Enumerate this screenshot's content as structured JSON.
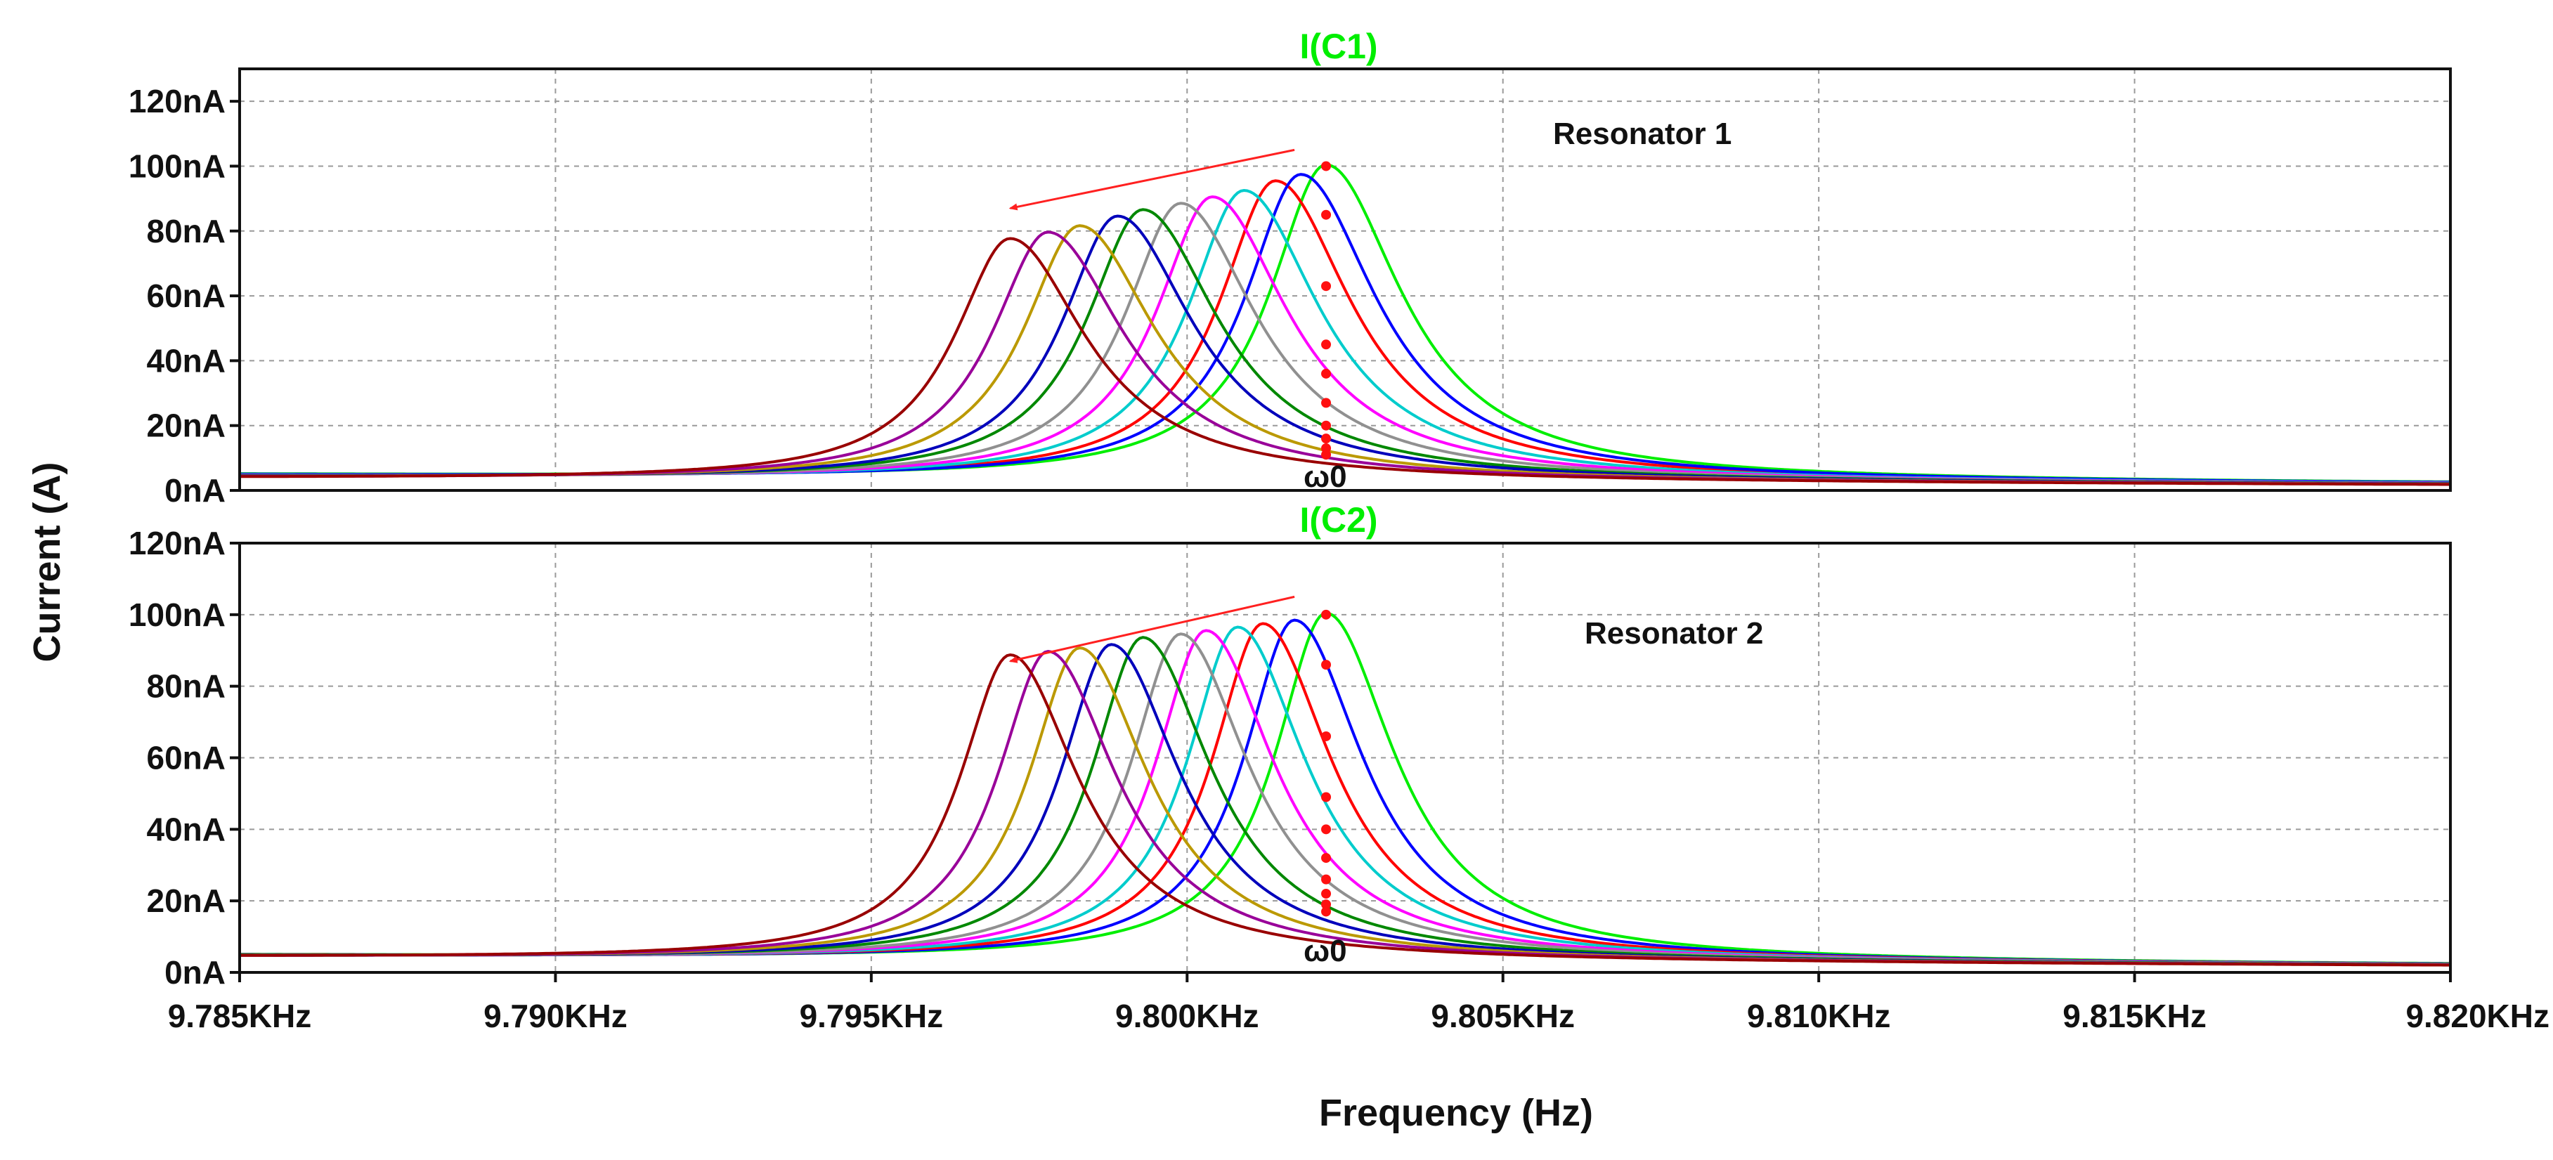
{
  "chart_data": [
    {
      "type": "line",
      "title": "I(C1)",
      "annotation": "Resonator 1",
      "marker_label": "ω0",
      "xlabel": "Frequency (Hz)",
      "ylabel": "Current (A)",
      "xlim": [
        9.785,
        9.82
      ],
      "ylim": [
        0,
        130
      ],
      "x_ticks": [
        "9.785KHz",
        "9.790KHz",
        "9.795KHz",
        "9.800KHz",
        "9.805KHz",
        "9.810KHz",
        "9.815KHz",
        "9.820KHz"
      ],
      "y_ticks": [
        "0nA",
        "20nA",
        "40nA",
        "60nA",
        "80nA",
        "100nA",
        "120nA"
      ],
      "y_tick_values": [
        0,
        20,
        40,
        60,
        80,
        100,
        120
      ],
      "grid": true,
      "marker_frequency": 9.8022,
      "marker_values": [
        100,
        85,
        63,
        45,
        36,
        27,
        20,
        16,
        13,
        11
      ],
      "arrow": {
        "from": [
          9.8017,
          105
        ],
        "to": [
          9.7972,
          87
        ]
      },
      "series": [
        {
          "color": "#00ee00",
          "peak_frequency": 9.8022,
          "peak_current": 100
        },
        {
          "color": "#ff0000",
          "peak_frequency": 9.8014,
          "peak_current": 95
        },
        {
          "color": "#0000ff",
          "peak_frequency": 9.8018,
          "peak_current": 97
        },
        {
          "color": "#00cccc",
          "peak_frequency": 9.8009,
          "peak_current": 92
        },
        {
          "color": "#ff00ff",
          "peak_frequency": 9.8004,
          "peak_current": 90
        },
        {
          "color": "#909090",
          "peak_frequency": 9.7999,
          "peak_current": 88
        },
        {
          "color": "#008800",
          "peak_frequency": 9.7993,
          "peak_current": 86
        },
        {
          "color": "#0000bb",
          "peak_frequency": 9.7989,
          "peak_current": 84
        },
        {
          "color": "#bb9900",
          "peak_frequency": 9.7983,
          "peak_current": 81
        },
        {
          "color": "#990099",
          "peak_frequency": 9.7978,
          "peak_current": 79
        },
        {
          "color": "#990000",
          "peak_frequency": 9.7972,
          "peak_current": 77
        }
      ]
    },
    {
      "type": "line",
      "title": "I(C2)",
      "annotation": "Resonator 2",
      "marker_label": "ω0",
      "xlabel": "Frequency (Hz)",
      "ylabel": "Current (A)",
      "xlim": [
        9.785,
        9.82
      ],
      "ylim": [
        0,
        120
      ],
      "x_ticks": [
        "9.785KHz",
        "9.790KHz",
        "9.795KHz",
        "9.800KHz",
        "9.805KHz",
        "9.810KHz",
        "9.815KHz",
        "9.820KHz"
      ],
      "y_ticks": [
        "0nA",
        "20nA",
        "40nA",
        "60nA",
        "80nA",
        "100nA",
        "120nA"
      ],
      "y_tick_values": [
        0,
        20,
        40,
        60,
        80,
        100,
        120
      ],
      "grid": true,
      "marker_frequency": 9.8022,
      "marker_values": [
        100,
        86,
        66,
        49,
        40,
        32,
        26,
        22,
        19,
        17
      ],
      "arrow": {
        "from": [
          9.8017,
          105
        ],
        "to": [
          9.7972,
          87
        ]
      },
      "series": [
        {
          "color": "#00ee00",
          "peak_frequency": 9.8022,
          "peak_current": 100
        },
        {
          "color": "#0000ff",
          "peak_frequency": 9.8017,
          "peak_current": 98
        },
        {
          "color": "#ff0000",
          "peak_frequency": 9.8012,
          "peak_current": 97
        },
        {
          "color": "#00cccc",
          "peak_frequency": 9.8008,
          "peak_current": 96
        },
        {
          "color": "#ff00ff",
          "peak_frequency": 9.8003,
          "peak_current": 95
        },
        {
          "color": "#909090",
          "peak_frequency": 9.7999,
          "peak_current": 94
        },
        {
          "color": "#008800",
          "peak_frequency": 9.7993,
          "peak_current": 93
        },
        {
          "color": "#0000bb",
          "peak_frequency": 9.7988,
          "peak_current": 91
        },
        {
          "color": "#bb9900",
          "peak_frequency": 9.7983,
          "peak_current": 90
        },
        {
          "color": "#990099",
          "peak_frequency": 9.7978,
          "peak_current": 89
        },
        {
          "color": "#990000",
          "peak_frequency": 9.7972,
          "peak_current": 88
        }
      ]
    }
  ]
}
